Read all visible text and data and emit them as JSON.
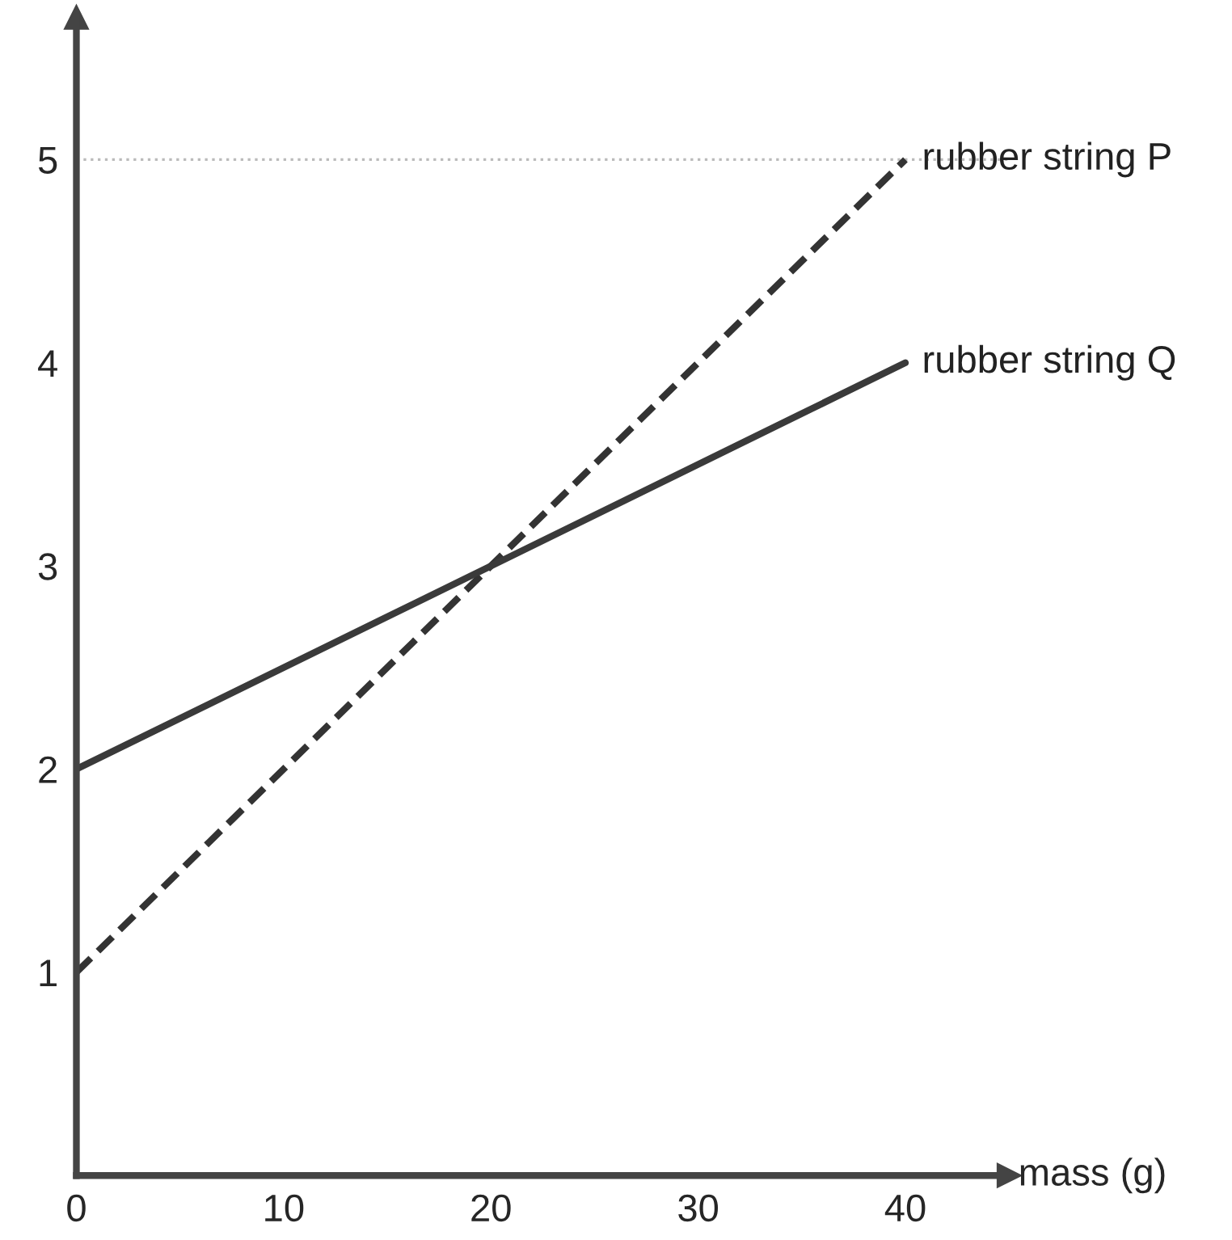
{
  "chart_data": {
    "type": "line",
    "xlabel": "mass (g)",
    "x": [
      0,
      40
    ],
    "series": [
      {
        "name": "rubber string P",
        "color": "#333333",
        "values": [
          1,
          5
        ],
        "line_style": "dashed"
      },
      {
        "name": "rubber string Q",
        "color": "#3a3a3a",
        "values": [
          2,
          4
        ],
        "line_style": "solid"
      }
    ],
    "xlim": [
      0,
      45
    ],
    "ylim": [
      0,
      5.7
    ],
    "xticks": [
      0,
      10,
      20,
      30,
      40
    ],
    "yticks": [
      1,
      2,
      3,
      4,
      5
    ],
    "ref_lines": [
      {
        "axis": "y",
        "value": 5,
        "color": "#bbbbbb",
        "line_style": "dotted"
      }
    ],
    "grid": false,
    "marker": "none"
  }
}
